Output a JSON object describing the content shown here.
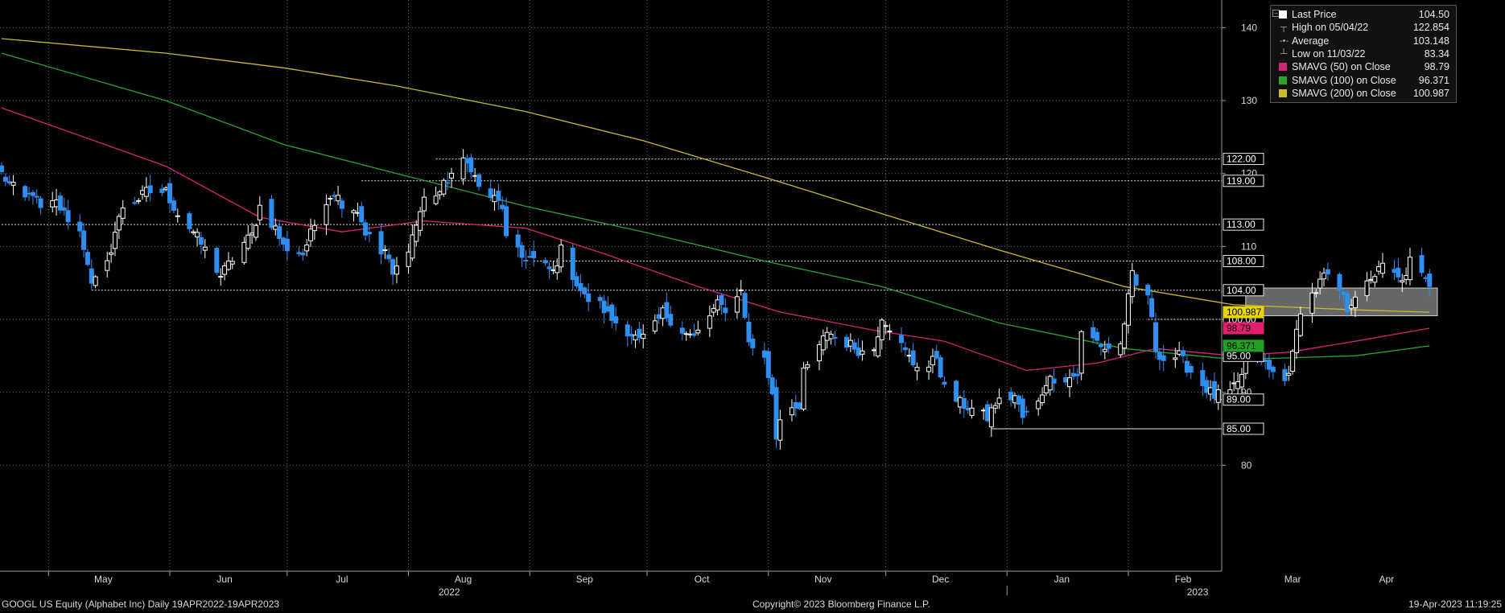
{
  "colors": {
    "background": "#000000",
    "up_candle": "#ffffff",
    "down_candle": "#2f8ff0",
    "sma50": "#d6237a",
    "sma100": "#2aa52a",
    "sma200": "#c9b92d",
    "grid": "#6a6a6a"
  },
  "legend": {
    "items": [
      {
        "label": "Last Price",
        "value": "104.50",
        "swatch": "#ffffff",
        "mark": ""
      },
      {
        "label": "High on 05/04/22",
        "value": "122.854",
        "swatch": "",
        "mark": "┬"
      },
      {
        "label": "Average",
        "value": "103.148",
        "swatch": "",
        "mark": "-•-"
      },
      {
        "label": "Low on 11/03/22",
        "value": "83.34",
        "swatch": "",
        "mark": "┴"
      },
      {
        "label": "SMAVG (50)  on Close",
        "value": "98.79",
        "swatch": "#d6237a",
        "mark": ""
      },
      {
        "label": "SMAVG (100)  on Close",
        "value": "96.371",
        "swatch": "#2aa52a",
        "mark": ""
      },
      {
        "label": "SMAVG (200)  on Close",
        "value": "100.987",
        "swatch": "#c9b92d",
        "mark": ""
      }
    ]
  },
  "footer": {
    "left": "GOOGL US Equity (Alphabet Inc)  Daily 19APR2022-19APR2023",
    "center": "Copyright© 2023 Bloomberg Finance L.P.",
    "right": "19-Apr-2023 11:19:25"
  },
  "chart_data": {
    "type": "candlestick",
    "ylim": [
      78,
      143
    ],
    "y_ticks": [
      80,
      90,
      100,
      110,
      120,
      130,
      140
    ],
    "x_months": [
      "May",
      "Jun",
      "Jul",
      "Aug",
      "Sep",
      "Oct",
      "Nov",
      "Dec",
      "Jan",
      "Feb",
      "Mar",
      "Apr"
    ],
    "x_years": [
      "2022",
      "2023"
    ],
    "level_labels": [
      {
        "text": "122.00",
        "value": 122.0,
        "color": "#ffffff"
      },
      {
        "text": "119.00",
        "value": 119.0,
        "color": "#ffffff"
      },
      {
        "text": "113.00",
        "value": 113.0,
        "color": "#ffffff"
      },
      {
        "text": "108.00",
        "value": 108.0,
        "color": "#ffffff"
      },
      {
        "text": "104.00",
        "value": 104.0,
        "color": "#ffffff"
      },
      {
        "text": "100.00",
        "value": 100.0,
        "color": "#ffffff"
      },
      {
        "text": "95.00",
        "value": 95.0,
        "color": "#ffffff"
      },
      {
        "text": "89.00",
        "value": 89.0,
        "color": "#ffffff"
      },
      {
        "text": "85.00",
        "value": 85.0,
        "color": "#ffffff"
      },
      {
        "text": "100.987",
        "value": 100.987,
        "color": "#e8d400"
      },
      {
        "text": "98.79",
        "value": 98.79,
        "color": "#e0206f"
      },
      {
        "text": "96.371",
        "value": 96.371,
        "color": "#22a022"
      }
    ],
    "horizontal_levels": [
      {
        "value": 122.0,
        "from": "2022-08-08"
      },
      {
        "value": 119.0,
        "from": "2022-07-20"
      },
      {
        "value": 113.0,
        "from": "2022-04-19"
      },
      {
        "value": 108.0,
        "from": "2022-09-02"
      },
      {
        "value": 104.0,
        "from": "2022-05-12"
      },
      {
        "value": 100.0,
        "from": "2023-02-06"
      },
      {
        "value": 89.0,
        "from": "2023-02-23"
      },
      {
        "value": 85.0,
        "from": "2022-12-28",
        "style": "solid"
      }
    ],
    "highlight_zone": {
      "from": "2023-03-03",
      "to": "2023-04-21",
      "low": 100.5,
      "high": 104.3
    },
    "anchors": [
      [
        "2022-04-19",
        120.0
      ],
      [
        "2022-04-21",
        118.5
      ],
      [
        "2022-04-25",
        116.5
      ],
      [
        "2022-04-27",
        117.5
      ],
      [
        "2022-04-29",
        115.0
      ],
      [
        "2022-05-03",
        116.0
      ],
      [
        "2022-05-05",
        114.5
      ],
      [
        "2022-05-09",
        112.0
      ],
      [
        "2022-05-11",
        108.0
      ],
      [
        "2022-05-12",
        104.5
      ],
      [
        "2022-05-16",
        107.5
      ],
      [
        "2022-05-18",
        112.0
      ],
      [
        "2022-05-20",
        115.5
      ],
      [
        "2022-05-24",
        116.5
      ],
      [
        "2022-05-26",
        117.5
      ],
      [
        "2022-05-31",
        117.5
      ],
      [
        "2022-06-03",
        114.5
      ],
      [
        "2022-06-07",
        112.0
      ],
      [
        "2022-06-10",
        109.5
      ],
      [
        "2022-06-14",
        106.0
      ],
      [
        "2022-06-16",
        107.5
      ],
      [
        "2022-06-20",
        110.5
      ],
      [
        "2022-06-22",
        111.5
      ],
      [
        "2022-06-24",
        115.5
      ],
      [
        "2022-06-28",
        112.5
      ],
      [
        "2022-06-30",
        110.0
      ],
      [
        "2022-07-05",
        109.0
      ],
      [
        "2022-07-08",
        113.0
      ],
      [
        "2022-07-11",
        116.5
      ],
      [
        "2022-07-13",
        117.5
      ],
      [
        "2022-07-15",
        116.0
      ],
      [
        "2022-07-19",
        115.0
      ],
      [
        "2022-07-21",
        112.0
      ],
      [
        "2022-07-25",
        109.0
      ],
      [
        "2022-07-26",
        109.5
      ],
      [
        "2022-07-28",
        106.0
      ],
      [
        "2022-08-01",
        110.0
      ],
      [
        "2022-08-03",
        113.0
      ],
      [
        "2022-08-05",
        116.5
      ],
      [
        "2022-08-09",
        117.5
      ],
      [
        "2022-08-12",
        120.0
      ],
      [
        "2022-08-15",
        121.5
      ],
      [
        "2022-08-17",
        121.0
      ],
      [
        "2022-08-19",
        118.0
      ],
      [
        "2022-08-23",
        116.5
      ],
      [
        "2022-08-25",
        115.5
      ],
      [
        "2022-08-26",
        111.0
      ],
      [
        "2022-08-30",
        108.5
      ],
      [
        "2022-09-01",
        108.5
      ],
      [
        "2022-09-07",
        106.5
      ],
      [
        "2022-09-09",
        109.5
      ],
      [
        "2022-09-13",
        105.0
      ],
      [
        "2022-09-15",
        103.0
      ],
      [
        "2022-09-19",
        102.0
      ],
      [
        "2022-09-22",
        100.0
      ],
      [
        "2022-09-26",
        98.5
      ],
      [
        "2022-09-29",
        97.0
      ],
      [
        "2022-10-03",
        99.0
      ],
      [
        "2022-10-05",
        101.0
      ],
      [
        "2022-10-07",
        100.0
      ],
      [
        "2022-10-11",
        98.0
      ],
      [
        "2022-10-13",
        97.5
      ],
      [
        "2022-10-17",
        100.5
      ],
      [
        "2022-10-19",
        102.0
      ],
      [
        "2022-10-21",
        101.5
      ],
      [
        "2022-10-24",
        103.0
      ],
      [
        "2022-10-25",
        104.5
      ],
      [
        "2022-10-26",
        100.0
      ],
      [
        "2022-10-27",
        97.0
      ],
      [
        "2022-10-31",
        94.5
      ],
      [
        "2022-11-02",
        90.0
      ],
      [
        "2022-11-03",
        84.0
      ],
      [
        "2022-11-04",
        86.5
      ],
      [
        "2022-11-07",
        88.5
      ],
      [
        "2022-11-09",
        87.0
      ],
      [
        "2022-11-10",
        93.0
      ],
      [
        "2022-11-14",
        96.0
      ],
      [
        "2022-11-16",
        98.5
      ],
      [
        "2022-11-18",
        97.5
      ],
      [
        "2022-11-22",
        96.5
      ],
      [
        "2022-11-25",
        95.5
      ],
      [
        "2022-11-28",
        96.0
      ],
      [
        "2022-11-30",
        100.5
      ],
      [
        "2022-12-02",
        99.0
      ],
      [
        "2022-12-06",
        95.5
      ],
      [
        "2022-12-08",
        94.0
      ],
      [
        "2022-12-12",
        93.5
      ],
      [
        "2022-12-14",
        95.0
      ],
      [
        "2022-12-16",
        90.5
      ],
      [
        "2022-12-20",
        88.5
      ],
      [
        "2022-12-22",
        88.0
      ],
      [
        "2022-12-27",
        86.5
      ],
      [
        "2022-12-29",
        88.5
      ],
      [
        "2023-01-03",
        89.5
      ],
      [
        "2023-01-05",
        86.5
      ],
      [
        "2023-01-09",
        88.5
      ],
      [
        "2023-01-11",
        91.5
      ],
      [
        "2023-01-13",
        92.0
      ],
      [
        "2023-01-17",
        92.0
      ],
      [
        "2023-01-19",
        92.5
      ],
      [
        "2023-01-20",
        98.0
      ],
      [
        "2023-01-24",
        97.0
      ],
      [
        "2023-01-26",
        96.0
      ],
      [
        "2023-01-30",
        96.5
      ],
      [
        "2023-02-02",
        106.0
      ],
      [
        "2023-02-03",
        104.5
      ],
      [
        "2023-02-06",
        103.5
      ],
      [
        "2023-02-08",
        96.0
      ],
      [
        "2023-02-10",
        94.5
      ],
      [
        "2023-02-14",
        95.0
      ],
      [
        "2023-02-16",
        93.5
      ],
      [
        "2023-02-21",
        90.5
      ],
      [
        "2023-02-23",
        89.5
      ],
      [
        "2023-02-27",
        90.0
      ],
      [
        "2023-03-01",
        91.0
      ],
      [
        "2023-03-03",
        94.0
      ],
      [
        "2023-03-07",
        94.5
      ],
      [
        "2023-03-09",
        93.0
      ],
      [
        "2023-03-13",
        91.5
      ],
      [
        "2023-03-15",
        95.0
      ],
      [
        "2023-03-17",
        101.5
      ],
      [
        "2023-03-21",
        104.0
      ],
      [
        "2023-03-23",
        106.0
      ],
      [
        "2023-03-27",
        104.0
      ],
      [
        "2023-03-29",
        101.5
      ],
      [
        "2023-03-31",
        103.5
      ],
      [
        "2023-04-04",
        105.0
      ],
      [
        "2023-04-06",
        107.5
      ],
      [
        "2023-04-10",
        106.0
      ],
      [
        "2023-04-12",
        105.0
      ],
      [
        "2023-04-14",
        108.0
      ],
      [
        "2023-04-19",
        104.5
      ]
    ],
    "sma50": [
      [
        "2022-04-19",
        129.0
      ],
      [
        "2022-05-31",
        121.0
      ],
      [
        "2022-06-24",
        114.0
      ],
      [
        "2022-07-15",
        112.0
      ],
      [
        "2022-08-05",
        113.5
      ],
      [
        "2022-08-31",
        112.5
      ],
      [
        "2022-09-20",
        109.0
      ],
      [
        "2022-10-14",
        104.5
      ],
      [
        "2022-11-04",
        101.0
      ],
      [
        "2022-11-28",
        98.5
      ],
      [
        "2022-12-16",
        97.0
      ],
      [
        "2023-01-06",
        93.0
      ],
      [
        "2023-01-24",
        94.0
      ],
      [
        "2023-02-08",
        96.0
      ],
      [
        "2023-02-28",
        95.0
      ],
      [
        "2023-03-14",
        95.5
      ],
      [
        "2023-03-31",
        97.0
      ],
      [
        "2023-04-19",
        98.79
      ]
    ],
    "sma100": [
      [
        "2022-04-19",
        136.5
      ],
      [
        "2022-05-31",
        130.0
      ],
      [
        "2022-06-30",
        124.0
      ],
      [
        "2022-07-29",
        120.0
      ],
      [
        "2022-08-31",
        115.5
      ],
      [
        "2022-09-30",
        112.0
      ],
      [
        "2022-10-31",
        108.0
      ],
      [
        "2022-11-30",
        104.5
      ],
      [
        "2022-12-30",
        99.5
      ],
      [
        "2023-01-31",
        96.0
      ],
      [
        "2023-02-28",
        94.5
      ],
      [
        "2023-03-31",
        95.0
      ],
      [
        "2023-04-19",
        96.371
      ]
    ],
    "sma200": [
      [
        "2022-04-19",
        138.5
      ],
      [
        "2022-05-31",
        136.5
      ],
      [
        "2022-06-30",
        134.5
      ],
      [
        "2022-07-29",
        132.0
      ],
      [
        "2022-08-31",
        128.5
      ],
      [
        "2022-09-30",
        124.5
      ],
      [
        "2022-10-31",
        119.5
      ],
      [
        "2022-11-30",
        114.5
      ],
      [
        "2022-12-30",
        109.5
      ],
      [
        "2023-01-31",
        104.5
      ],
      [
        "2023-02-28",
        102.0
      ],
      [
        "2023-03-31",
        101.3
      ],
      [
        "2023-04-19",
        100.987
      ]
    ]
  }
}
